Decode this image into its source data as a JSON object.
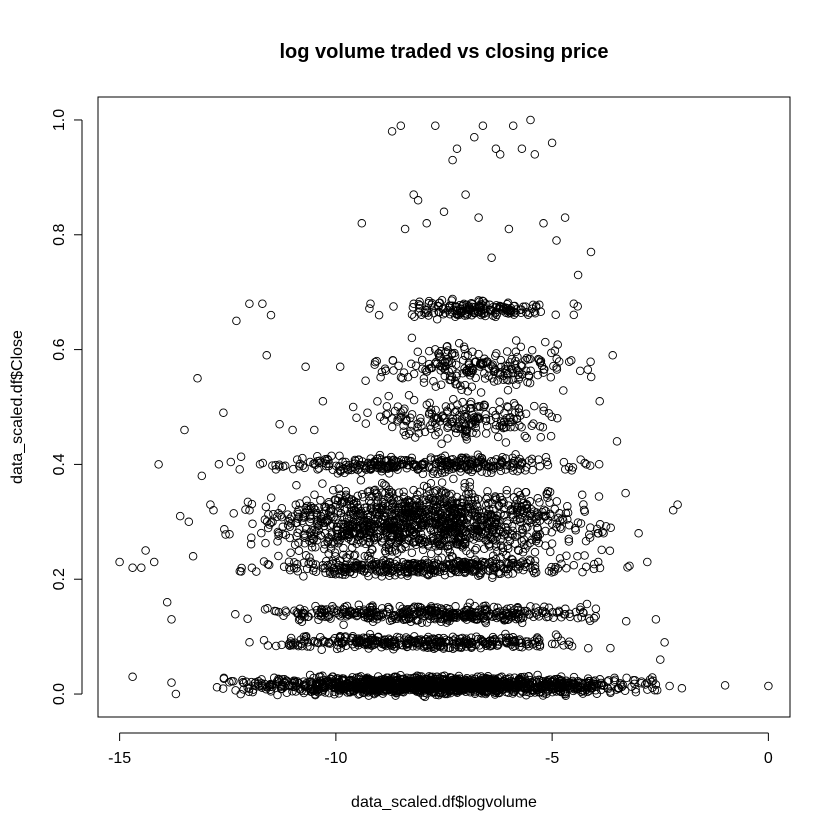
{
  "chart_data": {
    "type": "scatter",
    "title": "log volume traded vs closing price",
    "xlabel": "data_scaled.df$logvolume",
    "ylabel": "data_scaled.df$Close",
    "xlim": [
      -15.5,
      0.5
    ],
    "ylim": [
      -0.04,
      1.04
    ],
    "xticks": [
      -15,
      -10,
      -5,
      0
    ],
    "xtick_labels": [
      "-15",
      "-10",
      "-5",
      "0"
    ],
    "yticks": [
      0.0,
      0.2,
      0.4,
      0.6,
      0.8,
      1.0
    ],
    "ytick_labels": [
      "0.0",
      "0.2",
      "0.4",
      "0.6",
      "0.8",
      "1.0"
    ],
    "grid": false,
    "marker": "open-circle",
    "series": [
      {
        "points": [
          [
            -15.0,
            0.23
          ],
          [
            -14.7,
            0.22
          ],
          [
            -14.5,
            0.22
          ],
          [
            -14.4,
            0.25
          ],
          [
            -14.2,
            0.23
          ],
          [
            -14.1,
            0.4
          ],
          [
            -14.7,
            0.03
          ],
          [
            -13.8,
            0.02
          ],
          [
            -13.7,
            0.0
          ],
          [
            -13.5,
            0.46
          ],
          [
            -13.2,
            0.55
          ],
          [
            -13.9,
            0.16
          ],
          [
            -13.8,
            0.13
          ],
          [
            -13.6,
            0.31
          ],
          [
            -13.4,
            0.3
          ],
          [
            -13.3,
            0.24
          ],
          [
            -13.1,
            0.38
          ],
          [
            -12.9,
            0.33
          ],
          [
            -12.6,
            0.49
          ],
          [
            -12.3,
            0.65
          ],
          [
            -12.0,
            0.68
          ],
          [
            -11.7,
            0.68
          ],
          [
            -11.5,
            0.66
          ],
          [
            -11.6,
            0.59
          ],
          [
            -11.3,
            0.47
          ],
          [
            -11.0,
            0.46
          ],
          [
            -10.7,
            0.57
          ],
          [
            -10.5,
            0.46
          ],
          [
            -10.3,
            0.51
          ],
          [
            -9.9,
            0.57
          ],
          [
            -9.6,
            0.5
          ],
          [
            -9.4,
            0.82
          ],
          [
            -9.2,
            0.68
          ],
          [
            -9.0,
            0.66
          ],
          [
            -8.7,
            0.98
          ],
          [
            -8.5,
            0.99
          ],
          [
            -8.4,
            0.81
          ],
          [
            -8.2,
            0.87
          ],
          [
            -8.1,
            0.86
          ],
          [
            -7.9,
            0.82
          ],
          [
            -7.7,
            0.99
          ],
          [
            -7.5,
            0.84
          ],
          [
            -7.3,
            0.93
          ],
          [
            -7.2,
            0.95
          ],
          [
            -7.0,
            0.87
          ],
          [
            -6.8,
            0.97
          ],
          [
            -6.7,
            0.83
          ],
          [
            -6.6,
            0.99
          ],
          [
            -6.4,
            0.76
          ],
          [
            -6.3,
            0.95
          ],
          [
            -6.2,
            0.94
          ],
          [
            -6.0,
            0.81
          ],
          [
            -5.9,
            0.99
          ],
          [
            -5.7,
            0.95
          ],
          [
            -5.5,
            1.0
          ],
          [
            -5.4,
            0.94
          ],
          [
            -5.2,
            0.82
          ],
          [
            -5.0,
            0.96
          ],
          [
            -4.9,
            0.79
          ],
          [
            -4.7,
            0.83
          ],
          [
            -4.5,
            0.68
          ],
          [
            -4.4,
            0.73
          ],
          [
            -4.1,
            0.77
          ],
          [
            -3.9,
            0.51
          ],
          [
            -3.6,
            0.59
          ],
          [
            -3.5,
            0.44
          ],
          [
            -3.3,
            0.35
          ],
          [
            -3.0,
            0.28
          ],
          [
            -2.8,
            0.23
          ],
          [
            -2.6,
            0.13
          ],
          [
            -2.4,
            0.09
          ],
          [
            -2.2,
            0.32
          ],
          [
            -2.1,
            0.33
          ],
          [
            -2.5,
            0.06
          ],
          [
            -2.0,
            0.01
          ],
          [
            -1.0,
            0.015
          ],
          [
            0.0,
            0.014
          ]
        ],
        "clusters": [
          {
            "x_range": [
              -13.0,
              -2.2
            ],
            "y_center": 0.015,
            "y_spread": 0.015,
            "count": 1500
          },
          {
            "x_range": [
              -12.5,
              -3.5
            ],
            "y_center": 0.09,
            "y_spread": 0.012,
            "count": 350
          },
          {
            "x_range": [
              -12.5,
              -3.2
            ],
            "y_center": 0.14,
            "y_spread": 0.015,
            "count": 420
          },
          {
            "x_range": [
              -12.5,
              -3.0
            ],
            "y_center": 0.22,
            "y_spread": 0.015,
            "count": 380
          },
          {
            "x_range": [
              -12.8,
              -3.2
            ],
            "y_center": 0.3,
            "y_spread": 0.06,
            "count": 1250
          },
          {
            "x_range": [
              -12.5,
              -3.5
            ],
            "y_center": 0.4,
            "y_spread": 0.015,
            "count": 350
          },
          {
            "x_range": [
              -9.8,
              -4.3
            ],
            "y_center": 0.48,
            "y_spread": 0.04,
            "count": 200
          },
          {
            "x_range": [
              -9.5,
              -3.6
            ],
            "y_center": 0.57,
            "y_spread": 0.04,
            "count": 220
          },
          {
            "x_range": [
              -9.2,
              -4.5
            ],
            "y_center": 0.67,
            "y_spread": 0.015,
            "count": 180
          }
        ]
      }
    ]
  }
}
